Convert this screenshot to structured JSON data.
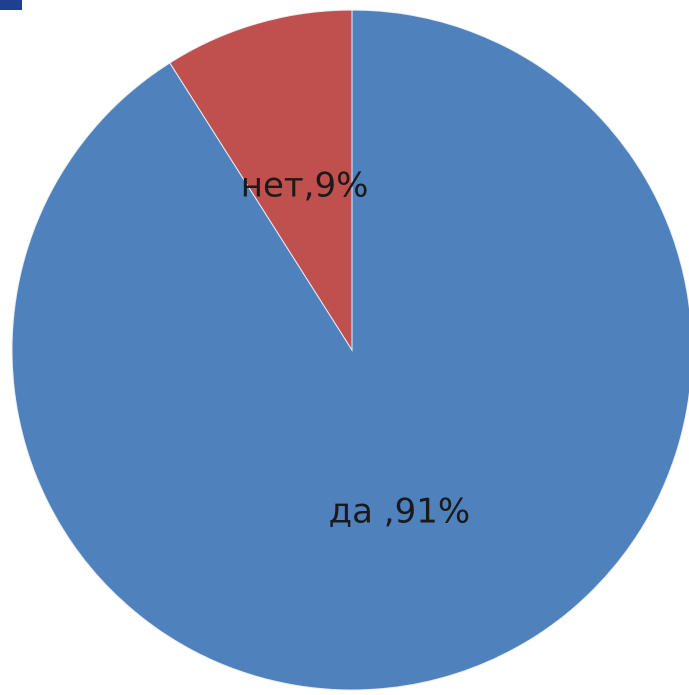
{
  "chart_data": {
    "type": "pie",
    "values": [
      91,
      9
    ],
    "value_labels": [
      "да ,91%",
      "нет,9%"
    ],
    "colors": [
      "#4f81bd",
      "#c0504d"
    ]
  }
}
